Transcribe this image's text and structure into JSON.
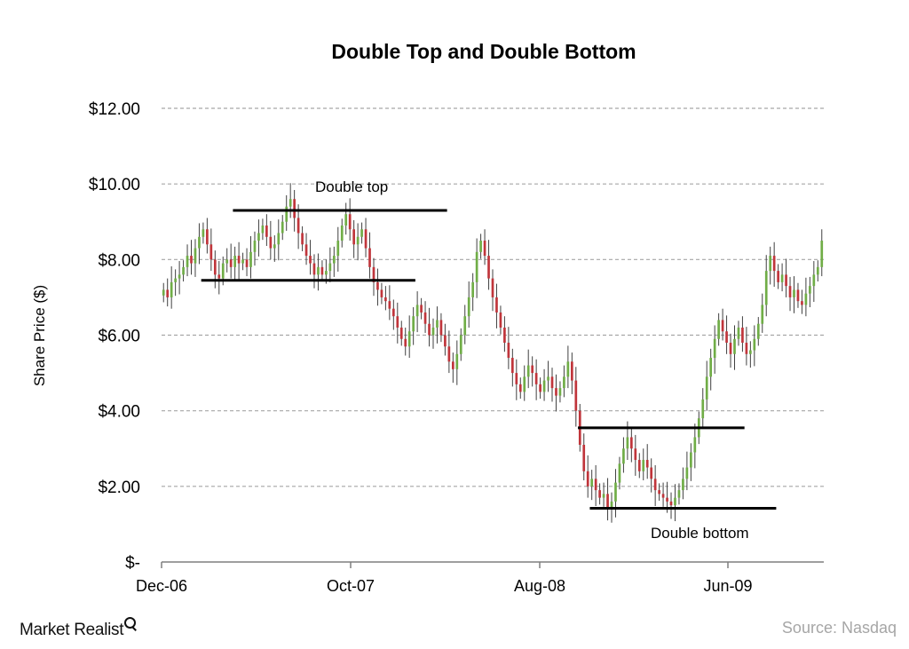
{
  "chart_data": {
    "type": "candlestick",
    "title": "Double Top and Double Bottom",
    "ylabel": "Share Price ($)",
    "ylim": [
      0,
      12
    ],
    "y_ticks": [
      {
        "value": 0,
        "label": "$-"
      },
      {
        "value": 2,
        "label": "$2.00"
      },
      {
        "value": 4,
        "label": "$4.00"
      },
      {
        "value": 6,
        "label": "$6.00"
      },
      {
        "value": 8,
        "label": "$8.00"
      },
      {
        "value": 10,
        "label": "$10.00"
      },
      {
        "value": 12,
        "label": "$12.00"
      }
    ],
    "x_ticks": [
      "Dec-06",
      "Oct-07",
      "Aug-08",
      "Jun-09"
    ],
    "grid": true,
    "colors": {
      "up": "#70ad47",
      "down": "#c0353b",
      "wick": "#404040",
      "grid": "#a6a6a6",
      "levels": "#000000"
    },
    "close": [
      7.2,
      7.0,
      7.4,
      7.5,
      7.6,
      7.8,
      8.1,
      7.9,
      8.3,
      8.6,
      8.8,
      8.4,
      8.0,
      7.6,
      7.5,
      7.9,
      8.0,
      7.8,
      8.1,
      7.9,
      8.0,
      7.8,
      8.2,
      8.5,
      8.7,
      8.9,
      8.6,
      8.3,
      8.4,
      8.7,
      9.0,
      9.4,
      9.6,
      9.1,
      8.7,
      8.4,
      8.1,
      7.9,
      7.6,
      7.8,
      7.6,
      7.7,
      7.9,
      8.1,
      8.5,
      8.9,
      9.2,
      8.8,
      8.4,
      8.6,
      8.8,
      8.3,
      7.8,
      7.4,
      7.2,
      7.0,
      6.9,
      6.7,
      6.5,
      6.2,
      5.9,
      5.7,
      6.1,
      6.5,
      6.8,
      6.6,
      6.3,
      6.0,
      6.2,
      6.4,
      6.0,
      5.7,
      5.3,
      5.1,
      5.5,
      6.0,
      6.5,
      7.0,
      7.4,
      8.2,
      8.5,
      8.1,
      7.5,
      7.0,
      6.6,
      6.2,
      5.8,
      5.4,
      5.0,
      4.7,
      4.5,
      4.9,
      5.2,
      5.0,
      4.7,
      4.5,
      4.8,
      4.9,
      4.6,
      4.4,
      4.6,
      4.9,
      5.3,
      4.8,
      4.0,
      3.1,
      2.4,
      2.0,
      2.2,
      1.9,
      1.7,
      1.8,
      1.4,
      1.6,
      2.1,
      2.6,
      3.0,
      3.3,
      3.0,
      2.7,
      2.4,
      2.7,
      2.5,
      2.2,
      1.9,
      1.8,
      1.7,
      1.6,
      1.5,
      1.7,
      1.9,
      2.2,
      2.5,
      2.9,
      3.3,
      3.8,
      4.3,
      4.9,
      5.4,
      5.9,
      6.4,
      6.1,
      5.8,
      5.5,
      5.9,
      6.2,
      5.8,
      5.5,
      5.6,
      5.9,
      6.3,
      6.8,
      7.7,
      8.1,
      7.7,
      7.4,
      7.6,
      7.3,
      7.0,
      7.2,
      6.9,
      6.8,
      7.1,
      7.3,
      7.6,
      7.8,
      8.5
    ],
    "annotations": {
      "double_top_label": "Double top",
      "double_bottom_label": "Double bottom"
    },
    "levels": [
      {
        "name": "double-top-resistance",
        "value": 9.3,
        "from_index": 18,
        "to_index": 72
      },
      {
        "name": "double-top-neckline",
        "value": 7.45,
        "from_index": 10,
        "to_index": 64
      },
      {
        "name": "double-bottom-neckline",
        "value": 3.55,
        "from_index": 105,
        "to_index": 147
      },
      {
        "name": "double-bottom-support",
        "value": 1.42,
        "from_index": 108,
        "to_index": 155
      }
    ]
  },
  "footer": {
    "brand": "Market Realist",
    "source": "Source: Nasdaq"
  }
}
